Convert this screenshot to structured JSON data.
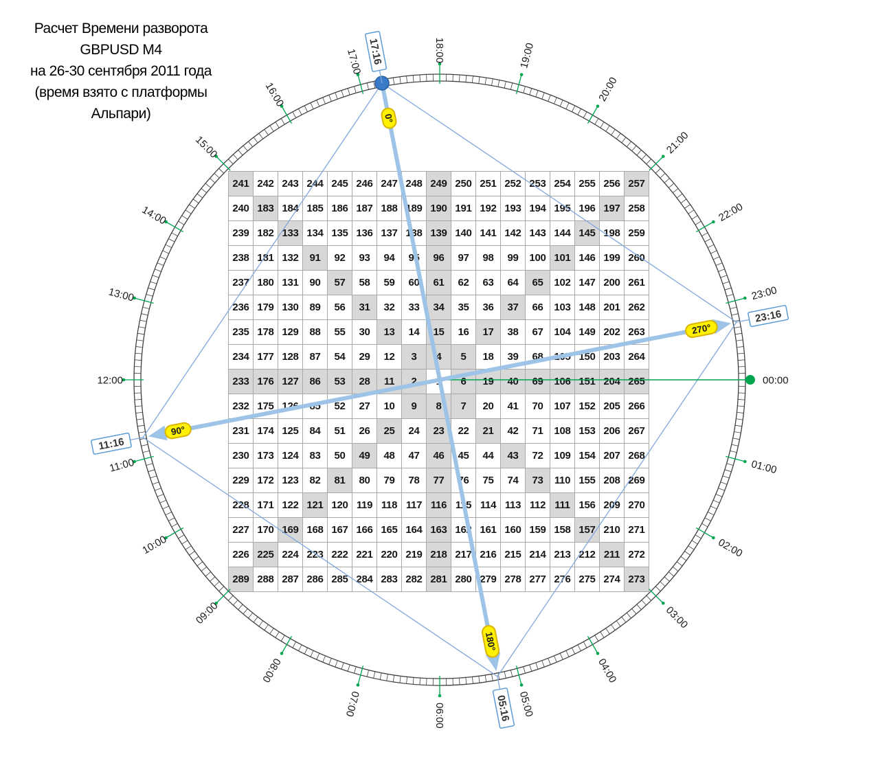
{
  "title": {
    "lines": [
      "Расчет Времени разворота",
      "GBPUSD M4",
      "на 26-30 сентября 2011 года",
      "(время взято с платформы",
      "Альпари)"
    ]
  },
  "chart_data": {
    "type": "table",
    "description": "Gann Square of 9 (17x17 spiral of numbers 1-289) inside a 24-hour dial; 18:00 at top, 00:00 at right, hours increase clockwise; reversal times marked at 0/90/180/270 degrees",
    "grid": {
      "rows": [
        [
          241,
          242,
          243,
          244,
          245,
          246,
          247,
          248,
          249,
          250,
          251,
          252,
          253,
          254,
          255,
          256,
          257
        ],
        [
          240,
          183,
          184,
          185,
          186,
          187,
          188,
          189,
          190,
          191,
          192,
          193,
          194,
          195,
          196,
          197,
          258
        ],
        [
          239,
          182,
          133,
          134,
          135,
          136,
          137,
          138,
          139,
          140,
          141,
          142,
          143,
          144,
          145,
          198,
          259
        ],
        [
          238,
          181,
          132,
          91,
          92,
          93,
          94,
          95,
          96,
          97,
          98,
          99,
          100,
          101,
          146,
          199,
          260
        ],
        [
          237,
          180,
          131,
          90,
          57,
          58,
          59,
          60,
          61,
          62,
          63,
          64,
          65,
          102,
          147,
          200,
          261
        ],
        [
          236,
          179,
          130,
          89,
          56,
          31,
          32,
          33,
          34,
          35,
          36,
          37,
          66,
          103,
          148,
          201,
          262
        ],
        [
          235,
          178,
          129,
          88,
          55,
          30,
          13,
          14,
          15,
          16,
          17,
          38,
          67,
          104,
          149,
          202,
          263
        ],
        [
          234,
          177,
          128,
          87,
          54,
          29,
          12,
          3,
          4,
          5,
          18,
          39,
          68,
          105,
          150,
          203,
          264
        ],
        [
          233,
          176,
          127,
          86,
          53,
          28,
          11,
          2,
          1,
          6,
          19,
          40,
          69,
          106,
          151,
          204,
          265
        ],
        [
          232,
          175,
          126,
          85,
          52,
          27,
          10,
          9,
          8,
          7,
          20,
          41,
          70,
          107,
          152,
          205,
          266
        ],
        [
          231,
          174,
          125,
          84,
          51,
          26,
          25,
          24,
          23,
          22,
          21,
          42,
          71,
          108,
          153,
          206,
          267
        ],
        [
          230,
          173,
          124,
          83,
          50,
          49,
          48,
          47,
          46,
          45,
          44,
          43,
          72,
          109,
          154,
          207,
          268
        ],
        [
          229,
          172,
          123,
          82,
          81,
          80,
          79,
          78,
          77,
          76,
          75,
          74,
          73,
          110,
          155,
          208,
          269
        ],
        [
          228,
          171,
          122,
          121,
          120,
          119,
          118,
          117,
          116,
          115,
          114,
          113,
          112,
          111,
          156,
          209,
          270
        ],
        [
          227,
          170,
          169,
          168,
          167,
          166,
          165,
          164,
          163,
          162,
          161,
          160,
          159,
          158,
          157,
          210,
          271
        ],
        [
          226,
          225,
          224,
          223,
          222,
          221,
          220,
          219,
          218,
          217,
          216,
          215,
          214,
          213,
          212,
          211,
          272
        ],
        [
          289,
          288,
          287,
          286,
          285,
          284,
          283,
          282,
          281,
          280,
          279,
          278,
          277,
          276,
          275,
          274,
          273
        ]
      ],
      "highlight_rule": "center row, center column and both diagonals shaded; center cell 1 white"
    },
    "dial": {
      "hours": [
        "00:00",
        "01:00",
        "02:00",
        "03:00",
        "04:00",
        "05:00",
        "06:00",
        "07:00",
        "08:00",
        "09:00",
        "10:00",
        "11:00",
        "12:00",
        "13:00",
        "14:00",
        "15:00",
        "16:00",
        "17:00",
        "18:00",
        "19:00",
        "20:00",
        "21:00",
        "22:00",
        "23:00"
      ],
      "orientation": "18:00 top, 00:00 right, 06:00 bottom, 12:00 left, clockwise",
      "reference_label": "00:00",
      "events": [
        {
          "time": "17:16",
          "degree": "0°",
          "marker": "dot"
        },
        {
          "time": "23:16",
          "degree": "270°",
          "marker": "arrow"
        },
        {
          "time": "05:16",
          "degree": "180°",
          "marker": "arrow"
        },
        {
          "time": "11:16",
          "degree": "90°",
          "marker": "arrow"
        }
      ],
      "arrows": [
        {
          "from": "17:16",
          "to": "05:16",
          "head_at_from": false,
          "head_at_to": true
        },
        {
          "from": "11:16",
          "to": "23:16",
          "head_at_from": true,
          "head_at_to": true
        }
      ]
    },
    "colors": {
      "band_stroke": "#3f3f3f",
      "green": "#00A550",
      "thin_blue": "#7fa8dc",
      "arrow_blue": "#9dc3e6",
      "box_blue": "#5b9bd5",
      "marker_dot_fill": "#3a7bc8",
      "marker_dot_stroke": "#2a5d9e",
      "yellow_fill": "#fff100",
      "yellow_stroke": "#d9b500",
      "grid_highlight": "#d8d8d8",
      "grid_border": "#a8a8a8"
    }
  }
}
